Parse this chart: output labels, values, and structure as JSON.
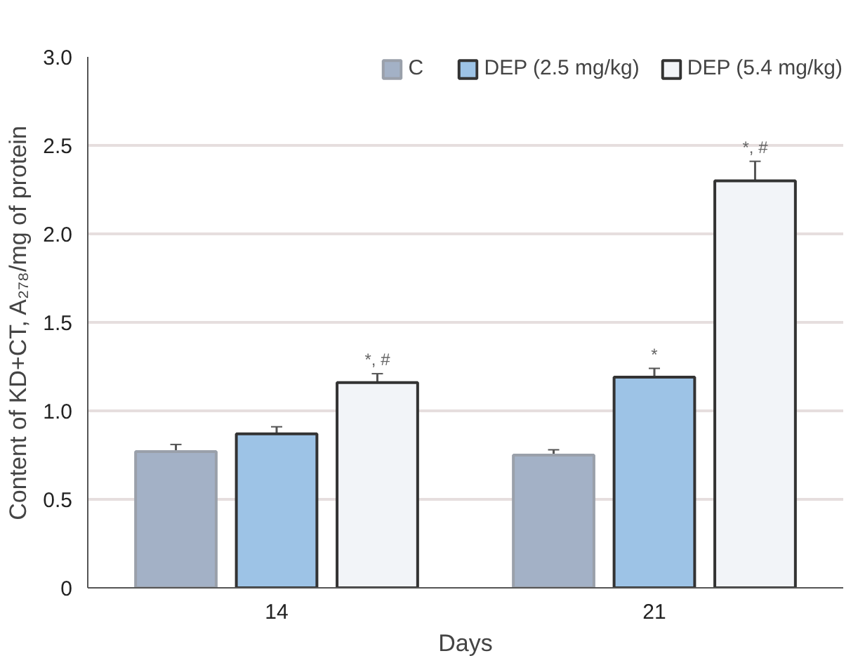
{
  "chart_data": {
    "type": "bar",
    "xlabel": "Days",
    "ylabel": "Content of KD+CT, A₂₇₈/mg of protein",
    "categories": [
      "14",
      "21"
    ],
    "series": [
      {
        "name": "C",
        "color": "#a3b1c6",
        "values": [
          0.77,
          0.75
        ],
        "errors": [
          0.04,
          0.03
        ]
      },
      {
        "name": "DEP (2.5 mg/kg)",
        "color": "#9dc3e6",
        "values": [
          0.87,
          1.19
        ],
        "errors": [
          0.04,
          0.05
        ]
      },
      {
        "name": "DEP (5.4 mg/kg)",
        "color": "#f2f4f8",
        "values": [
          1.16,
          2.3
        ],
        "errors": [
          0.05,
          0.11
        ]
      }
    ],
    "ylim": [
      0,
      3.0
    ],
    "yticks": [
      0,
      0.5,
      {
        "value": 1,
        "label": "1.0"
      },
      1.5,
      {
        "value": 2,
        "label": "2.0"
      },
      2.5,
      {
        "value": 3,
        "label": "3.0"
      }
    ],
    "grid": "y",
    "legend": "top",
    "annotations": [
      "*, #",
      {
        "text": "*",
        "x": "21",
        "y": 1.24
      },
      "*, #"
    ]
  }
}
